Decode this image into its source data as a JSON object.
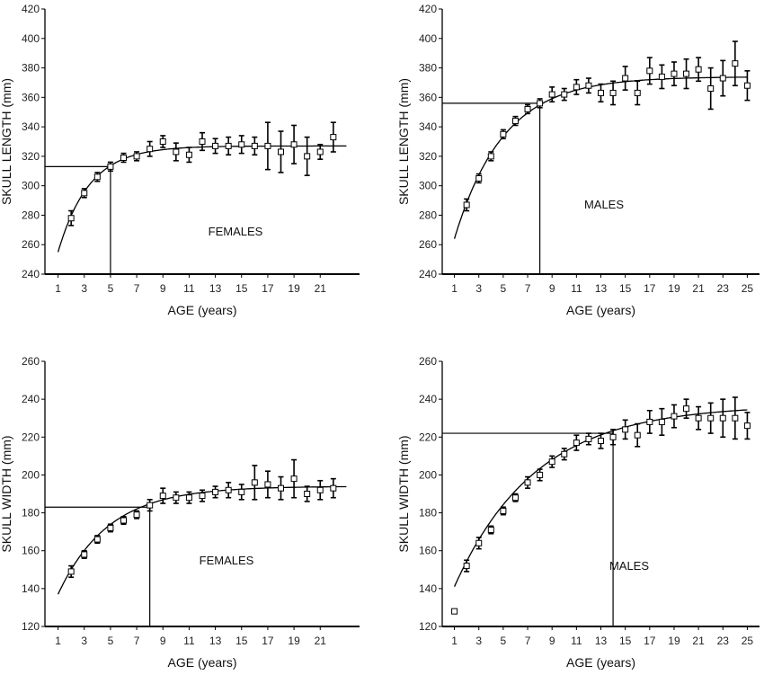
{
  "chart_data": [
    {
      "type": "scatter",
      "title": "",
      "annotation": "FEMALES",
      "xlabel": "AGE (years)",
      "ylabel": "SKULL LENGTH (mm)",
      "xlim": [
        0,
        24
      ],
      "ylim": [
        240,
        420
      ],
      "xticks": [
        1,
        3,
        5,
        7,
        9,
        11,
        13,
        15,
        17,
        19,
        21
      ],
      "yticks": [
        240,
        260,
        280,
        300,
        320,
        340,
        360,
        380,
        400,
        420
      ],
      "reference": {
        "x": 5,
        "y": 313
      },
      "fit": {
        "asymptote": 327,
        "start": 255,
        "x0": 1,
        "rate": 0.42,
        "xmax": 23
      },
      "points": [
        {
          "x": 2,
          "y": 278,
          "err": 5
        },
        {
          "x": 3,
          "y": 295,
          "err": 3
        },
        {
          "x": 4,
          "y": 306,
          "err": 3
        },
        {
          "x": 5,
          "y": 313,
          "err": 3
        },
        {
          "x": 6,
          "y": 319,
          "err": 3
        },
        {
          "x": 7,
          "y": 320,
          "err": 3
        },
        {
          "x": 8,
          "y": 325,
          "err": 5
        },
        {
          "x": 9,
          "y": 330,
          "err": 4
        },
        {
          "x": 10,
          "y": 323,
          "err": 6
        },
        {
          "x": 11,
          "y": 321,
          "err": 5
        },
        {
          "x": 12,
          "y": 330,
          "err": 6
        },
        {
          "x": 13,
          "y": 327,
          "err": 5
        },
        {
          "x": 14,
          "y": 327,
          "err": 6
        },
        {
          "x": 15,
          "y": 328,
          "err": 6
        },
        {
          "x": 16,
          "y": 327,
          "err": 6
        },
        {
          "x": 17,
          "y": 327,
          "err": 16
        },
        {
          "x": 18,
          "y": 323,
          "err": 14
        },
        {
          "x": 19,
          "y": 328,
          "err": 13
        },
        {
          "x": 20,
          "y": 320,
          "err": 13
        },
        {
          "x": 21,
          "y": 323,
          "err": 5
        },
        {
          "x": 22,
          "y": 333,
          "err": 10
        }
      ]
    },
    {
      "type": "scatter",
      "title": "",
      "annotation": "MALES",
      "xlabel": "AGE (years)",
      "ylabel": "SKULL LENGTH (mm)",
      "xlim": [
        0,
        26
      ],
      "ylim": [
        240,
        420
      ],
      "xticks": [
        1,
        3,
        5,
        7,
        9,
        11,
        13,
        15,
        17,
        19,
        21,
        23,
        25
      ],
      "yticks": [
        240,
        260,
        280,
        300,
        320,
        340,
        360,
        380,
        400,
        420
      ],
      "reference": {
        "x": 8,
        "y": 356
      },
      "fit": {
        "asymptote": 374,
        "start": 264,
        "x0": 1,
        "rate": 0.25,
        "xmax": 25
      },
      "points": [
        {
          "x": 2,
          "y": 287,
          "err": 4
        },
        {
          "x": 3,
          "y": 305,
          "err": 3
        },
        {
          "x": 4,
          "y": 320,
          "err": 3
        },
        {
          "x": 5,
          "y": 335,
          "err": 3
        },
        {
          "x": 6,
          "y": 344,
          "err": 3
        },
        {
          "x": 7,
          "y": 352,
          "err": 3
        },
        {
          "x": 8,
          "y": 356,
          "err": 3
        },
        {
          "x": 9,
          "y": 362,
          "err": 5
        },
        {
          "x": 10,
          "y": 362,
          "err": 4
        },
        {
          "x": 11,
          "y": 367,
          "err": 5
        },
        {
          "x": 12,
          "y": 368,
          "err": 5
        },
        {
          "x": 13,
          "y": 363,
          "err": 6
        },
        {
          "x": 14,
          "y": 363,
          "err": 8
        },
        {
          "x": 15,
          "y": 373,
          "err": 8
        },
        {
          "x": 16,
          "y": 363,
          "err": 8
        },
        {
          "x": 17,
          "y": 378,
          "err": 9
        },
        {
          "x": 18,
          "y": 374,
          "err": 8
        },
        {
          "x": 19,
          "y": 376,
          "err": 8
        },
        {
          "x": 20,
          "y": 376,
          "err": 10
        },
        {
          "x": 21,
          "y": 379,
          "err": 8
        },
        {
          "x": 22,
          "y": 366,
          "err": 14
        },
        {
          "x": 23,
          "y": 373,
          "err": 12
        },
        {
          "x": 24,
          "y": 383,
          "err": 15
        },
        {
          "x": 25,
          "y": 368,
          "err": 10
        }
      ]
    },
    {
      "type": "scatter",
      "title": "",
      "annotation": "FEMALES",
      "xlabel": "AGE (years)",
      "ylabel": "SKULL WIDTH (mm)",
      "xlim": [
        0,
        24
      ],
      "ylim": [
        120,
        260
      ],
      "xticks": [
        1,
        3,
        5,
        7,
        9,
        11,
        13,
        15,
        17,
        19,
        21
      ],
      "yticks": [
        120,
        140,
        160,
        180,
        200,
        220,
        240,
        260
      ],
      "reference": {
        "x": 8,
        "y": 183
      },
      "fit": {
        "asymptote": 194,
        "start": 137,
        "x0": 1,
        "rate": 0.26,
        "xmax": 23
      },
      "points": [
        {
          "x": 2,
          "y": 149,
          "err": 3
        },
        {
          "x": 3,
          "y": 158,
          "err": 2
        },
        {
          "x": 4,
          "y": 166,
          "err": 2
        },
        {
          "x": 5,
          "y": 172,
          "err": 2
        },
        {
          "x": 6,
          "y": 176,
          "err": 2
        },
        {
          "x": 7,
          "y": 179,
          "err": 2
        },
        {
          "x": 8,
          "y": 184,
          "err": 3
        },
        {
          "x": 9,
          "y": 189,
          "err": 4
        },
        {
          "x": 10,
          "y": 188,
          "err": 3
        },
        {
          "x": 11,
          "y": 188,
          "err": 3
        },
        {
          "x": 12,
          "y": 189,
          "err": 3
        },
        {
          "x": 13,
          "y": 191,
          "err": 3
        },
        {
          "x": 14,
          "y": 192,
          "err": 4
        },
        {
          "x": 15,
          "y": 191,
          "err": 4
        },
        {
          "x": 16,
          "y": 196,
          "err": 9
        },
        {
          "x": 17,
          "y": 195,
          "err": 7
        },
        {
          "x": 18,
          "y": 193,
          "err": 6
        },
        {
          "x": 19,
          "y": 198,
          "err": 10
        },
        {
          "x": 20,
          "y": 190,
          "err": 4
        },
        {
          "x": 21,
          "y": 192,
          "err": 5
        },
        {
          "x": 22,
          "y": 193,
          "err": 5
        }
      ]
    },
    {
      "type": "scatter",
      "title": "",
      "annotation": "MALES",
      "xlabel": "AGE (years)",
      "ylabel": "SKULL WIDTH (mm)",
      "xlim": [
        0,
        26
      ],
      "ylim": [
        120,
        260
      ],
      "xticks": [
        1,
        3,
        5,
        7,
        9,
        11,
        13,
        15,
        17,
        19,
        21,
        23,
        25
      ],
      "yticks": [
        120,
        140,
        160,
        180,
        200,
        220,
        240,
        260
      ],
      "reference": {
        "x": 14,
        "y": 222
      },
      "fit": {
        "asymptote": 237,
        "start": 141,
        "x0": 1,
        "rate": 0.15,
        "xmax": 25
      },
      "points": [
        {
          "x": 1,
          "y": 128,
          "err": 0
        },
        {
          "x": 2,
          "y": 152,
          "err": 3
        },
        {
          "x": 3,
          "y": 164,
          "err": 3
        },
        {
          "x": 4,
          "y": 171,
          "err": 2
        },
        {
          "x": 5,
          "y": 181,
          "err": 2
        },
        {
          "x": 6,
          "y": 188,
          "err": 2
        },
        {
          "x": 7,
          "y": 196,
          "err": 3
        },
        {
          "x": 8,
          "y": 200,
          "err": 3
        },
        {
          "x": 9,
          "y": 207,
          "err": 3
        },
        {
          "x": 10,
          "y": 211,
          "err": 3
        },
        {
          "x": 11,
          "y": 217,
          "err": 4
        },
        {
          "x": 12,
          "y": 219,
          "err": 3
        },
        {
          "x": 13,
          "y": 218,
          "err": 4
        },
        {
          "x": 14,
          "y": 220,
          "err": 4
        },
        {
          "x": 15,
          "y": 224,
          "err": 5
        },
        {
          "x": 16,
          "y": 221,
          "err": 6
        },
        {
          "x": 17,
          "y": 228,
          "err": 6
        },
        {
          "x": 18,
          "y": 228,
          "err": 7
        },
        {
          "x": 19,
          "y": 231,
          "err": 6
        },
        {
          "x": 20,
          "y": 235,
          "err": 5
        },
        {
          "x": 21,
          "y": 230,
          "err": 6
        },
        {
          "x": 22,
          "y": 230,
          "err": 8
        },
        {
          "x": 23,
          "y": 230,
          "err": 10
        },
        {
          "x": 24,
          "y": 230,
          "err": 11
        },
        {
          "x": 25,
          "y": 226,
          "err": 7
        }
      ]
    }
  ]
}
